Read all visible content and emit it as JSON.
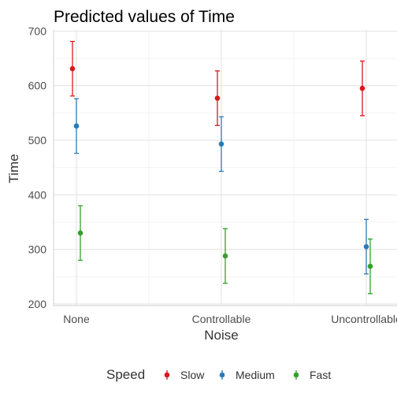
{
  "chart_data": {
    "type": "scatter",
    "title": "Predicted values of Time",
    "xlabel": "Noise",
    "ylabel": "Time",
    "categories": [
      "None",
      "Controllable",
      "Uncontrollable"
    ],
    "ylim": [
      197,
      702
    ],
    "yticks": [
      200,
      300,
      400,
      500,
      600,
      700
    ],
    "grid": true,
    "legend": {
      "title": "Speed",
      "position": "bottom"
    },
    "series": [
      {
        "name": "Slow",
        "color": "#d7191c",
        "values": [
          631,
          577,
          595
        ],
        "lower": [
          581,
          527,
          545
        ],
        "upper": [
          681,
          627,
          645
        ]
      },
      {
        "name": "Medium",
        "color": "#2c7bb6",
        "values": [
          526,
          493,
          305
        ],
        "lower": [
          476,
          443,
          255
        ],
        "upper": [
          576,
          543,
          355
        ]
      },
      {
        "name": "Fast",
        "color": "#33a02c",
        "values": [
          330,
          288,
          269
        ],
        "lower": [
          280,
          238,
          219
        ],
        "upper": [
          380,
          338,
          319
        ]
      }
    ]
  }
}
